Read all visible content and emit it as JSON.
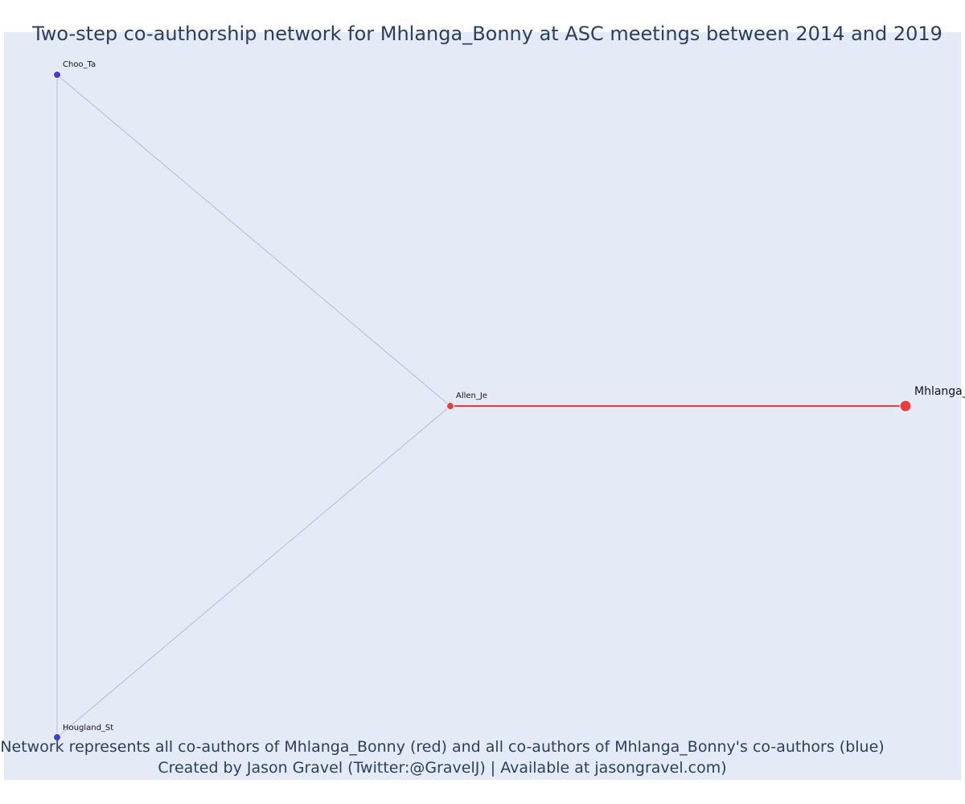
{
  "title": "Two-step co-authorship network for Mhlanga_Bonny at ASC meetings between 2014 and 2019",
  "caption": {
    "line1": "Network represents all co-authors of Mhlanga_Bonny (red) and all co-authors of Mhlanga_Bonny's co-authors (blue)",
    "line2": "Created by Jason Gravel (Twitter:@GravelJ) | Available at jasongravel.com)"
  },
  "colors": {
    "background": "#e5ebf6",
    "focal": "#ee3b3b",
    "coauthor": "#ee3b3b",
    "second_step": "#3b3bee",
    "edge_gray": "#b8bccc",
    "edge_red": "#ee3b3b",
    "title_text": "#2a3f5f"
  },
  "nodes": [
    {
      "id": "mhlanga",
      "label": "Mhlanga_Bonny",
      "role": "focal"
    },
    {
      "id": "allen",
      "label": "Allen_Je",
      "role": "coauthor"
    },
    {
      "id": "choo",
      "label": "Choo_Ta",
      "role": "second_step"
    },
    {
      "id": "hougland",
      "label": "Hougland_St",
      "role": "second_step"
    }
  ],
  "edges": [
    {
      "source": "allen",
      "target": "mhlanga",
      "type": "direct"
    },
    {
      "source": "allen",
      "target": "choo",
      "type": "indirect"
    },
    {
      "source": "allen",
      "target": "hougland",
      "type": "indirect"
    },
    {
      "source": "choo",
      "target": "hougland",
      "type": "indirect"
    }
  ]
}
